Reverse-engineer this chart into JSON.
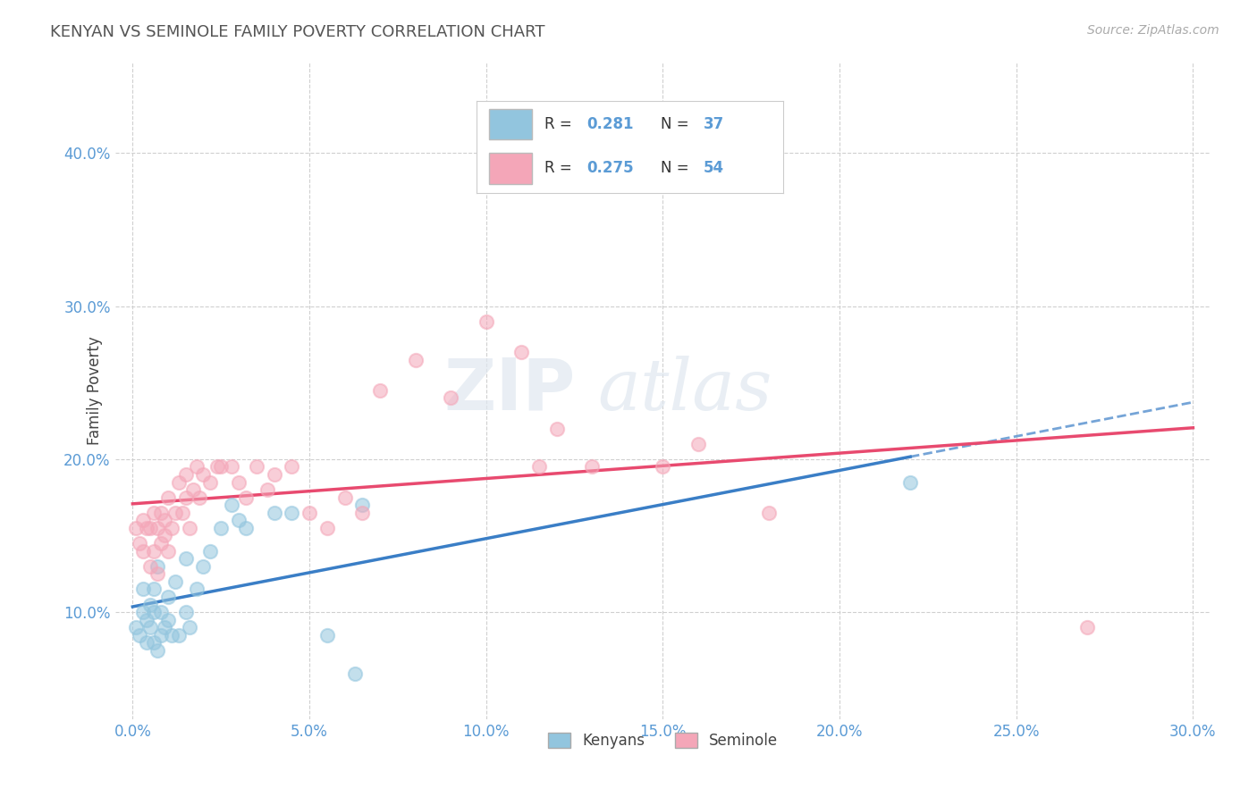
{
  "title": "KENYAN VS SEMINOLE FAMILY POVERTY CORRELATION CHART",
  "source": "Source: ZipAtlas.com",
  "xlabel_ticks": [
    "0.0%",
    "5.0%",
    "10.0%",
    "15.0%",
    "20.0%",
    "25.0%",
    "30.0%"
  ],
  "xlabel_vals": [
    0.0,
    0.05,
    0.1,
    0.15,
    0.2,
    0.25,
    0.3
  ],
  "ylabel": "Family Poverty",
  "ylabel_ticks": [
    "10.0%",
    "20.0%",
    "30.0%",
    "40.0%"
  ],
  "ylabel_vals": [
    0.1,
    0.2,
    0.3,
    0.4
  ],
  "xlim": [
    -0.005,
    0.305
  ],
  "ylim": [
    0.03,
    0.46
  ],
  "legend_R1": "0.281",
  "legend_N1": "37",
  "legend_R2": "0.275",
  "legend_N2": "54",
  "legend_label1": "Kenyans",
  "legend_label2": "Seminole",
  "blue_color": "#92c5de",
  "pink_color": "#f4a6b8",
  "blue_line_color": "#3a7ec6",
  "pink_line_color": "#e84a6f",
  "title_color": "#555555",
  "axis_tick_color": "#5b9bd5",
  "watermark_zip": "ZIP",
  "watermark_atlas": "atlas",
  "kenyan_x": [
    0.001,
    0.002,
    0.003,
    0.003,
    0.004,
    0.004,
    0.005,
    0.005,
    0.006,
    0.006,
    0.006,
    0.007,
    0.007,
    0.008,
    0.008,
    0.009,
    0.01,
    0.01,
    0.011,
    0.012,
    0.013,
    0.015,
    0.015,
    0.016,
    0.018,
    0.02,
    0.022,
    0.025,
    0.028,
    0.03,
    0.032,
    0.04,
    0.045,
    0.055,
    0.063,
    0.065,
    0.22
  ],
  "kenyan_y": [
    0.09,
    0.085,
    0.1,
    0.115,
    0.08,
    0.095,
    0.09,
    0.105,
    0.08,
    0.1,
    0.115,
    0.075,
    0.13,
    0.085,
    0.1,
    0.09,
    0.095,
    0.11,
    0.085,
    0.12,
    0.085,
    0.1,
    0.135,
    0.09,
    0.115,
    0.13,
    0.14,
    0.155,
    0.17,
    0.16,
    0.155,
    0.165,
    0.165,
    0.085,
    0.06,
    0.17,
    0.185
  ],
  "seminole_x": [
    0.001,
    0.002,
    0.003,
    0.003,
    0.004,
    0.005,
    0.005,
    0.006,
    0.006,
    0.007,
    0.007,
    0.008,
    0.008,
    0.009,
    0.009,
    0.01,
    0.01,
    0.011,
    0.012,
    0.013,
    0.014,
    0.015,
    0.015,
    0.016,
    0.017,
    0.018,
    0.019,
    0.02,
    0.022,
    0.024,
    0.025,
    0.028,
    0.03,
    0.032,
    0.035,
    0.038,
    0.04,
    0.045,
    0.05,
    0.055,
    0.06,
    0.065,
    0.07,
    0.08,
    0.09,
    0.1,
    0.11,
    0.115,
    0.12,
    0.13,
    0.15,
    0.16,
    0.18,
    0.27
  ],
  "seminole_y": [
    0.155,
    0.145,
    0.16,
    0.14,
    0.155,
    0.13,
    0.155,
    0.14,
    0.165,
    0.125,
    0.155,
    0.145,
    0.165,
    0.15,
    0.16,
    0.14,
    0.175,
    0.155,
    0.165,
    0.185,
    0.165,
    0.175,
    0.19,
    0.155,
    0.18,
    0.195,
    0.175,
    0.19,
    0.185,
    0.195,
    0.195,
    0.195,
    0.185,
    0.175,
    0.195,
    0.18,
    0.19,
    0.195,
    0.165,
    0.155,
    0.175,
    0.165,
    0.245,
    0.265,
    0.24,
    0.29,
    0.27,
    0.195,
    0.22,
    0.195,
    0.195,
    0.21,
    0.165,
    0.09
  ]
}
